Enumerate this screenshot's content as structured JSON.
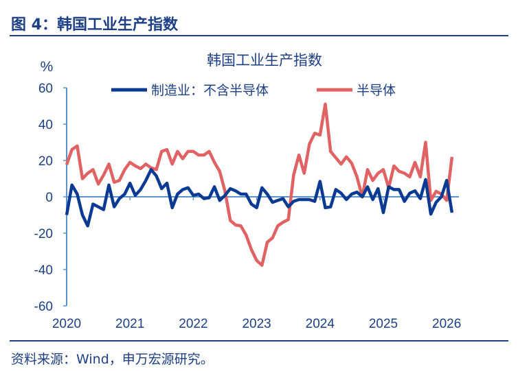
{
  "figure_title": "图 4：韩国工业生产指数",
  "source": "资料来源：Wind，申万宏源研究。",
  "colors": {
    "manufacturing": "#0b3a93",
    "semiconductor": "#e06262",
    "axis": "#5b93cf",
    "title": "#1c3f86"
  },
  "chart_data": {
    "type": "line",
    "title": "韩国工业生产指数",
    "ylabel": "%",
    "ylim": [
      -60,
      60
    ],
    "yticks": [
      "60",
      "40",
      "20",
      "0",
      "-20",
      "-40",
      "-60"
    ],
    "xticks": [
      "2020",
      "2021",
      "2022",
      "2023",
      "2024",
      "2025",
      "2026"
    ],
    "x_start": "2020-01",
    "x_end": "2026-02",
    "frequency": "monthly",
    "legend_position": "top",
    "grid": false,
    "series": [
      {
        "name": "制造业：不含半导体",
        "color": "#0b3a93",
        "values": [
          -10,
          6.5,
          1.5,
          -10,
          -16,
          -4,
          -5.5,
          -7,
          6.5,
          -5.5,
          -1,
          1.5,
          7.5,
          0.8,
          4,
          9,
          15,
          11.5,
          4.5,
          7.5,
          -6,
          1.5,
          4,
          5,
          0.8,
          1.5,
          -1,
          -0.5,
          5.5,
          -2,
          0.8,
          4.5,
          3.3,
          1.5,
          1.5,
          -4,
          -6,
          5,
          1.5,
          -3,
          -2,
          -1,
          -5.5,
          -2.5,
          -1.5,
          -1.5,
          -1.5,
          -2.5,
          8.5,
          -6,
          -5.5,
          4,
          2,
          -1.5,
          1.5,
          2.6,
          0,
          5.5,
          -1.5,
          4.5,
          -8.7,
          5.5,
          4,
          4,
          -2.5,
          2,
          3.3,
          -1,
          9.5,
          -9.5,
          -3,
          0,
          9,
          -8.7
        ]
      },
      {
        "name": "半导体",
        "color": "#e06262",
        "values": [
          17.7,
          26,
          28,
          10,
          13,
          15,
          7,
          12,
          18,
          8,
          9,
          15,
          19,
          17,
          15.5,
          18,
          16,
          15,
          25,
          26,
          18,
          25,
          21,
          25,
          25,
          23,
          23,
          25,
          19,
          14,
          3,
          -13,
          -15.5,
          -16,
          -21,
          -29,
          -35,
          -37.7,
          -25,
          -22.6,
          -16,
          -14,
          -12.5,
          12,
          23,
          13,
          29,
          35,
          34,
          51,
          25,
          21.5,
          18,
          22,
          18.5,
          11,
          0,
          15,
          9,
          13,
          15,
          5,
          17,
          14,
          13,
          11,
          19,
          11,
          30,
          -2,
          3,
          1.5,
          -2,
          22
        ]
      }
    ]
  }
}
